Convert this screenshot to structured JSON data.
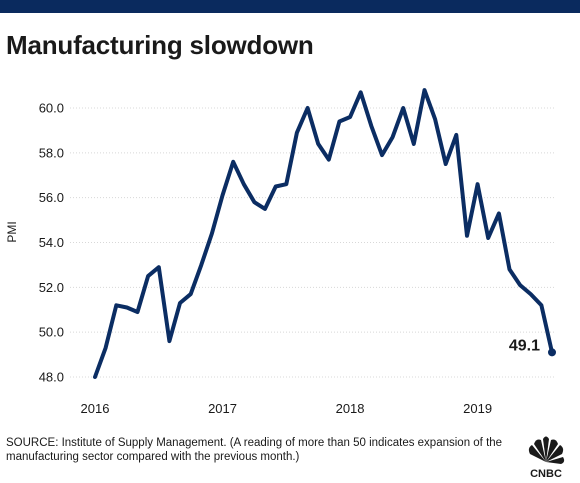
{
  "header": {
    "title": "Manufacturing slowdown"
  },
  "footer": {
    "source": "SOURCE: Institute of Supply Management. (A reading of more than 50 indicates expansion of the manufacturing sector compared with the previous month.)",
    "brand": "CNBC"
  },
  "colors": {
    "top_bar": "#0a2a5e",
    "line": "#0b2d63",
    "grid": "#d8d8d8",
    "text": "#1a1a1a"
  },
  "chart_data": {
    "type": "line",
    "title": "Manufacturing slowdown",
    "xlabel": "",
    "ylabel": "PMI",
    "x_ticks": [
      "2016",
      "2017",
      "2018",
      "2019"
    ],
    "y_ticks": [
      "48.0",
      "50.0",
      "52.0",
      "54.0",
      "56.0",
      "58.0",
      "60.0"
    ],
    "ylim": [
      48.0,
      60.0
    ],
    "grid": "horizontal",
    "annotation": "49.1",
    "x": [
      "2016-01",
      "2016-02",
      "2016-03",
      "2016-04",
      "2016-05",
      "2016-06",
      "2016-07",
      "2016-08",
      "2016-09",
      "2016-10",
      "2016-11",
      "2016-12",
      "2017-01",
      "2017-02",
      "2017-03",
      "2017-04",
      "2017-05",
      "2017-06",
      "2017-07",
      "2017-08",
      "2017-09",
      "2017-10",
      "2017-11",
      "2017-12",
      "2018-01",
      "2018-02",
      "2018-03",
      "2018-04",
      "2018-05",
      "2018-06",
      "2018-07",
      "2018-08",
      "2018-09",
      "2018-10",
      "2018-11",
      "2018-12",
      "2019-01",
      "2019-02",
      "2019-03",
      "2019-04",
      "2019-05",
      "2019-06",
      "2019-07",
      "2019-08"
    ],
    "values": [
      48.0,
      49.3,
      51.2,
      51.1,
      50.9,
      52.5,
      52.9,
      49.6,
      51.3,
      51.7,
      53.0,
      54.4,
      56.1,
      57.6,
      56.6,
      55.8,
      55.5,
      56.5,
      56.6,
      58.9,
      60.0,
      58.4,
      57.7,
      59.4,
      59.6,
      60.7,
      59.2,
      57.9,
      58.7,
      60.0,
      58.4,
      60.8,
      59.5,
      57.5,
      58.8,
      54.3,
      56.6,
      54.2,
      55.3,
      52.8,
      52.1,
      51.7,
      51.2,
      49.1
    ],
    "series": [
      {
        "values_ref": "values"
      }
    ]
  }
}
